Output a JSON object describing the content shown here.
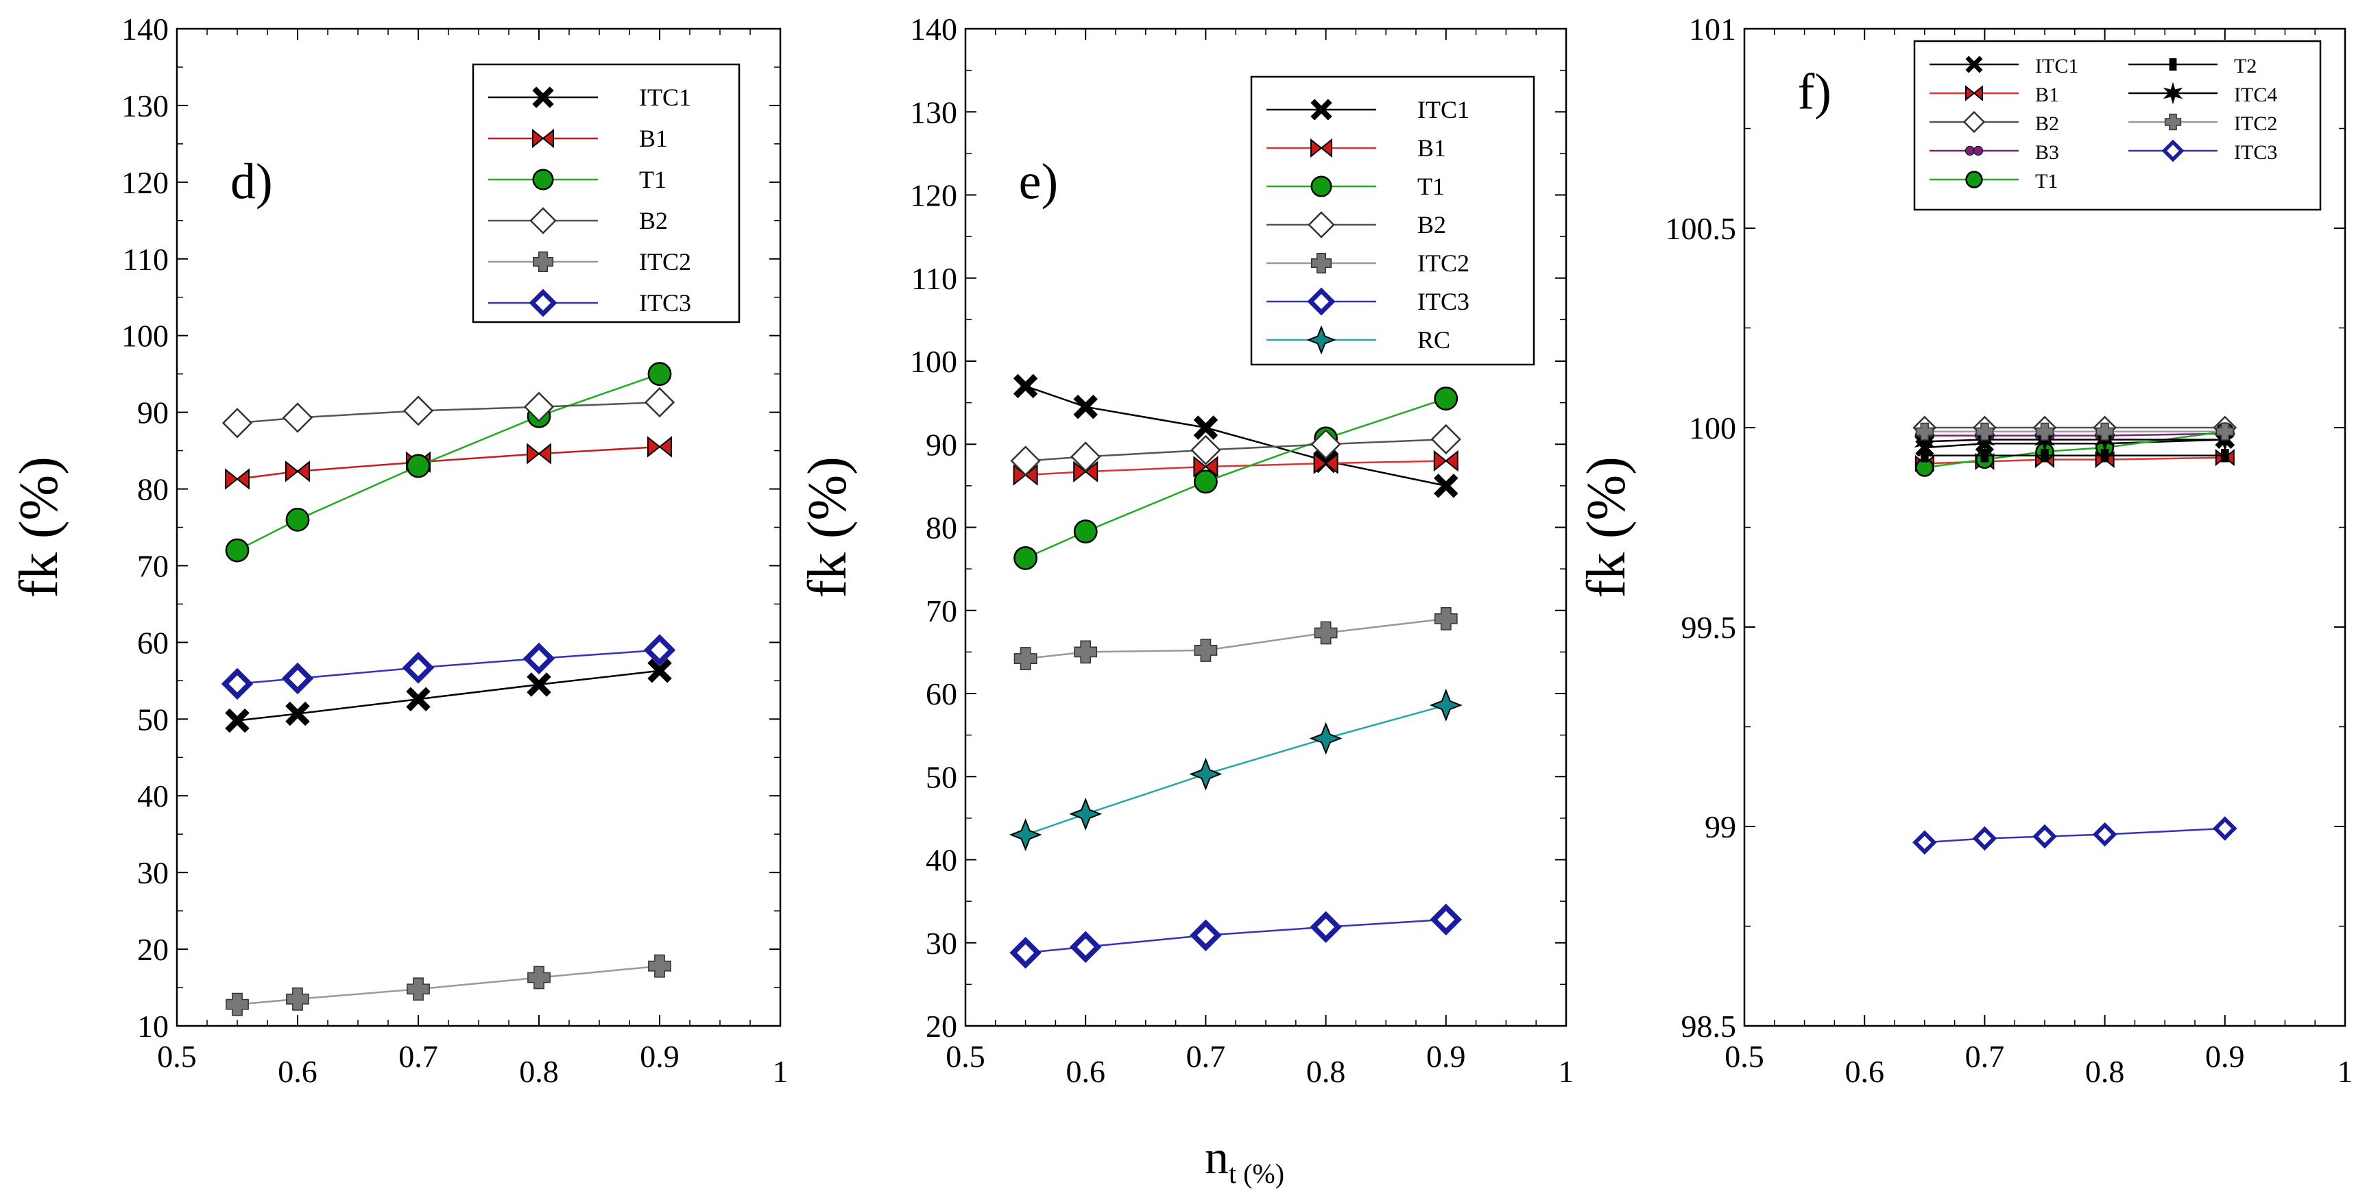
{
  "figure": {
    "xlabel_main": "n",
    "xlabel_sub": "t (%)"
  },
  "chart_data": [
    {
      "panel_tag": "d)",
      "type": "line",
      "ylabel": "fk (%)",
      "xlim": [
        0.5,
        1
      ],
      "ylim": [
        10,
        140
      ],
      "xticks": [
        0.5,
        0.6,
        0.7,
        0.8,
        0.9,
        1
      ],
      "xtick_labels": [
        "0.5",
        "0.6",
        "0.7",
        "0.8",
        "0.9",
        "1"
      ],
      "yticks": [
        10,
        20,
        30,
        40,
        50,
        60,
        70,
        80,
        90,
        100,
        110,
        120,
        130,
        140
      ],
      "ytick_labels": [
        "10",
        "20",
        "30",
        "40",
        "50",
        "60",
        "70",
        "80",
        "90",
        "100",
        "110",
        "120",
        "130",
        "140"
      ],
      "x": [
        0.55,
        0.6,
        0.7,
        0.8,
        0.9
      ],
      "legend_columns": 1,
      "legend_position": "top-right",
      "series": [
        {
          "name": "ITC1",
          "marker": "x-bold",
          "color": "#000000",
          "line_color": "#000000",
          "values": [
            49.8,
            50.7,
            52.6,
            54.5,
            56.3
          ]
        },
        {
          "name": "B1",
          "marker": "bowtie",
          "color": "#cc1a1a",
          "line_color": "#cc1a1a",
          "values": [
            81.3,
            82.3,
            83.5,
            84.6,
            85.5
          ]
        },
        {
          "name": "T1",
          "marker": "circle",
          "color": "#119911",
          "line_color": "#22aa22",
          "values": [
            72.0,
            76.0,
            83.0,
            89.5,
            95.0
          ]
        },
        {
          "name": "B2",
          "marker": "diamond-open",
          "color": "#ffffff",
          "line_color": "#555555",
          "values": [
            88.6,
            89.3,
            90.2,
            90.7,
            91.3
          ]
        },
        {
          "name": "ITC2",
          "marker": "plus-gray",
          "color": "#777777",
          "line_color": "#999999",
          "values": [
            12.8,
            13.5,
            14.8,
            16.3,
            17.8
          ]
        },
        {
          "name": "ITC3",
          "marker": "diamond-blue",
          "color": "#1c1c9e",
          "line_color": "#3333bb",
          "values": [
            54.6,
            55.3,
            56.7,
            57.9,
            59.0
          ]
        }
      ]
    },
    {
      "panel_tag": "e)",
      "type": "line",
      "ylabel": "fk (%)",
      "xlim": [
        0.5,
        1
      ],
      "ylim": [
        20,
        140
      ],
      "xticks": [
        0.5,
        0.6,
        0.7,
        0.8,
        0.9,
        1
      ],
      "xtick_labels": [
        "0.5",
        "0.6",
        "0.7",
        "0.8",
        "0.9",
        "1"
      ],
      "yticks": [
        20,
        30,
        40,
        50,
        60,
        70,
        80,
        90,
        100,
        110,
        120,
        130,
        140
      ],
      "ytick_labels": [
        "20",
        "30",
        "40",
        "50",
        "60",
        "70",
        "80",
        "90",
        "100",
        "110",
        "120",
        "130",
        "140"
      ],
      "x": [
        0.55,
        0.6,
        0.7,
        0.8,
        0.9
      ],
      "legend_columns": 1,
      "legend_position": "top-right",
      "series": [
        {
          "name": "ITC1",
          "marker": "x-bold",
          "color": "#000000",
          "line_color": "#000000",
          "values": [
            97.0,
            94.5,
            92.0,
            88.0,
            85.0
          ]
        },
        {
          "name": "B1",
          "marker": "bowtie",
          "color": "#cc1a1a",
          "line_color": "#dd3333",
          "values": [
            86.3,
            86.7,
            87.3,
            87.7,
            88.0
          ]
        },
        {
          "name": "T1",
          "marker": "circle",
          "color": "#119911",
          "line_color": "#22aa22",
          "values": [
            76.3,
            79.5,
            85.5,
            90.7,
            95.5
          ]
        },
        {
          "name": "B2",
          "marker": "diamond-open",
          "color": "#ffffff",
          "line_color": "#555555",
          "values": [
            88.0,
            88.5,
            89.3,
            90.0,
            90.6
          ]
        },
        {
          "name": "ITC2",
          "marker": "plus-gray",
          "color": "#777777",
          "line_color": "#999999",
          "values": [
            64.2,
            65.0,
            65.2,
            67.3,
            69.0
          ]
        },
        {
          "name": "ITC3",
          "marker": "diamond-blue",
          "color": "#1c1c9e",
          "line_color": "#3333bb",
          "values": [
            28.8,
            29.5,
            30.9,
            31.9,
            32.8
          ]
        },
        {
          "name": "RC",
          "marker": "star-teal",
          "color": "#118888",
          "line_color": "#22aaaa",
          "values": [
            43.0,
            45.5,
            50.3,
            54.6,
            58.6
          ]
        }
      ]
    },
    {
      "panel_tag": "f)",
      "type": "line",
      "ylabel": "fk (%)",
      "xlim": [
        0.5,
        1
      ],
      "ylim": [
        98.5,
        101
      ],
      "xticks": [
        0.5,
        0.6,
        0.7,
        0.8,
        0.9,
        1
      ],
      "xtick_labels": [
        "0.5",
        "0.6",
        "0.7",
        "0.8",
        "0.9",
        "1"
      ],
      "yticks": [
        98.5,
        99,
        99.5,
        100,
        100.5,
        101
      ],
      "ytick_labels": [
        "98.5",
        "99",
        "99.5",
        "100",
        "100.5",
        "101"
      ],
      "x": [
        0.65,
        0.7,
        0.75,
        0.8,
        0.9
      ],
      "legend_columns": 2,
      "legend_position": "top-right",
      "series": [
        {
          "name": "ITC1",
          "marker": "x-bold",
          "color": "#000000",
          "line_color": "#000000",
          "values": [
            99.95,
            99.96,
            99.96,
            99.96,
            99.97
          ]
        },
        {
          "name": "B1",
          "marker": "bowtie",
          "color": "#cc1a1a",
          "line_color": "#dd3333",
          "values": [
            99.91,
            99.915,
            99.92,
            99.92,
            99.925
          ]
        },
        {
          "name": "B2",
          "marker": "diamond-open",
          "color": "#ffffff",
          "line_color": "#555555",
          "values": [
            100.0,
            100.0,
            100.0,
            100.0,
            100.0
          ]
        },
        {
          "name": "B3",
          "marker": "dumbbell",
          "color": "#772277",
          "line_color": "#772277",
          "values": [
            99.98,
            99.98,
            99.98,
            99.98,
            99.985
          ]
        },
        {
          "name": "T1",
          "marker": "circle",
          "color": "#119911",
          "line_color": "#22aa22",
          "values": [
            99.9,
            99.92,
            99.94,
            99.95,
            99.99
          ]
        },
        {
          "name": "T2",
          "marker": "square-small",
          "color": "#000000",
          "line_color": "#000000",
          "values": [
            99.93,
            99.93,
            99.93,
            99.93,
            99.93
          ]
        },
        {
          "name": "ITC4",
          "marker": "star-black",
          "color": "#000000",
          "line_color": "#000000",
          "values": [
            99.965,
            99.97,
            99.97,
            99.97,
            99.97
          ]
        },
        {
          "name": "ITC2",
          "marker": "plus-gray",
          "color": "#777777",
          "line_color": "#999999",
          "values": [
            99.99,
            99.99,
            99.99,
            99.99,
            99.99
          ]
        },
        {
          "name": "ITC3",
          "marker": "diamond-blue",
          "color": "#1c1c9e",
          "line_color": "#3333bb",
          "values": [
            98.96,
            98.97,
            98.975,
            98.98,
            98.995
          ]
        }
      ]
    }
  ]
}
